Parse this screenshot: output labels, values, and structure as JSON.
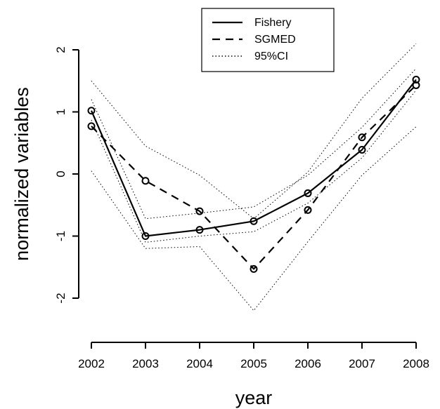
{
  "chart_data": {
    "type": "line",
    "title": "",
    "xlabel": "year",
    "ylabel": "normalized variables",
    "x": [
      2002,
      2003,
      2004,
      2005,
      2006,
      2007,
      2008
    ],
    "xlim": [
      2002,
      2008
    ],
    "ylim": [
      -2,
      2
    ],
    "y_ticks": [
      -2,
      -1,
      0,
      1,
      2
    ],
    "grid": false,
    "legend_position": "top-center",
    "series": [
      {
        "name": "Fishery",
        "line_style": "solid",
        "markers": true,
        "values": [
          1.02,
          -1.0,
          -0.9,
          -0.76,
          -0.31,
          0.39,
          1.52
        ]
      },
      {
        "name": "SGMED",
        "line_style": "dashed",
        "markers": true,
        "values": [
          0.77,
          -0.11,
          -0.6,
          -1.53,
          -0.58,
          0.59,
          1.43
        ]
      },
      {
        "name": "95%CI",
        "line_style": "dotted",
        "markers": false,
        "values": [
          1.5,
          0.45,
          -0.02,
          -0.72,
          0.03,
          1.22,
          2.1
        ]
      },
      {
        "name": "",
        "line_style": "dotted",
        "markers": false,
        "values": [
          0.05,
          -1.2,
          -1.17,
          -2.2,
          -1.09,
          -0.02,
          0.76
        ]
      },
      {
        "name": "",
        "line_style": "dotted",
        "markers": false,
        "values": [
          1.2,
          -0.72,
          -0.63,
          -0.53,
          -0.02,
          0.75,
          1.7
        ]
      },
      {
        "name": "",
        "line_style": "dotted",
        "markers": false,
        "values": [
          0.87,
          -1.1,
          -1.0,
          -0.93,
          -0.47,
          0.26,
          1.35
        ]
      }
    ]
  },
  "colors": {
    "line": "#000000",
    "background": "#ffffff"
  }
}
